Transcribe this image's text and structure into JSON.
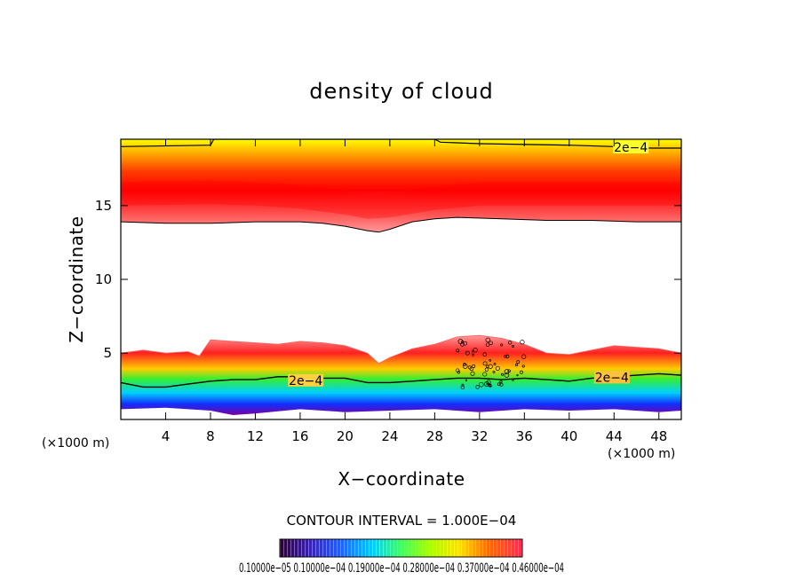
{
  "chart_data": {
    "type": "heatmap",
    "title": "density of cloud",
    "xlabel": "X−coordinate",
    "ylabel": "Z−coordinate",
    "x_unit": "(×1000 m)",
    "xlim": [
      0,
      50
    ],
    "ylim": [
      0.5,
      19.5
    ],
    "x_ticks": [
      4,
      8,
      12,
      16,
      20,
      24,
      28,
      32,
      36,
      40,
      44,
      48
    ],
    "y_ticks": [
      5,
      10,
      15
    ],
    "contour_interval_label": "CONTOUR INTERVAL = 1.000E−04",
    "contour_labels": [
      {
        "text": "2e−4",
        "x": 45.5,
        "z": 18.9
      },
      {
        "text": "2e−4",
        "x": 16.5,
        "z": 3.1
      },
      {
        "text": "2e−4",
        "x": 43.8,
        "z": 3.3
      }
    ],
    "colorbar_labels": "0.10000e−05 0.10000e−04 0.19000e−04 0.28000e−04 0.37000e−04 0.46000e−04",
    "lower_cloud_top_z": [
      [
        0,
        5.0
      ],
      [
        2,
        5.2
      ],
      [
        4,
        5.0
      ],
      [
        6,
        5.1
      ],
      [
        7,
        4.8
      ],
      [
        8,
        5.9
      ],
      [
        10,
        5.8
      ],
      [
        12,
        5.7
      ],
      [
        14,
        5.6
      ],
      [
        16,
        5.8
      ],
      [
        18,
        5.7
      ],
      [
        20,
        5.5
      ],
      [
        22,
        5.0
      ],
      [
        23,
        4.3
      ],
      [
        24,
        4.7
      ],
      [
        26,
        5.3
      ],
      [
        28,
        5.6
      ],
      [
        30,
        6.1
      ],
      [
        32,
        6.2
      ],
      [
        34,
        6.0
      ],
      [
        36,
        5.6
      ],
      [
        38,
        5.0
      ],
      [
        40,
        4.9
      ],
      [
        42,
        5.2
      ],
      [
        44,
        5.5
      ],
      [
        46,
        5.4
      ],
      [
        48,
        5.3
      ],
      [
        50,
        5.0
      ]
    ],
    "lower_contour_z": [
      [
        0,
        3.0
      ],
      [
        2,
        2.7
      ],
      [
        4,
        2.7
      ],
      [
        6,
        2.9
      ],
      [
        8,
        3.1
      ],
      [
        10,
        3.2
      ],
      [
        12,
        3.2
      ],
      [
        14,
        3.4
      ],
      [
        16,
        3.4
      ],
      [
        18,
        3.3
      ],
      [
        20,
        3.3
      ],
      [
        22,
        3.0
      ],
      [
        24,
        3.0
      ],
      [
        26,
        3.1
      ],
      [
        28,
        3.2
      ],
      [
        30,
        3.3
      ],
      [
        32,
        3.3
      ],
      [
        34,
        3.2
      ],
      [
        36,
        3.3
      ],
      [
        38,
        3.2
      ],
      [
        40,
        3.1
      ],
      [
        42,
        3.3
      ],
      [
        44,
        3.4
      ],
      [
        46,
        3.5
      ],
      [
        48,
        3.6
      ],
      [
        50,
        3.5
      ]
    ],
    "lower_cloud_base_z": [
      [
        0,
        1.2
      ],
      [
        4,
        1.3
      ],
      [
        8,
        1.1
      ],
      [
        10,
        0.8
      ],
      [
        12,
        0.9
      ],
      [
        16,
        1.2
      ],
      [
        20,
        1.0
      ],
      [
        24,
        1.1
      ],
      [
        28,
        1.2
      ],
      [
        32,
        1.0
      ],
      [
        36,
        1.2
      ],
      [
        40,
        1.1
      ],
      [
        44,
        1.2
      ],
      [
        48,
        1.0
      ],
      [
        50,
        1.1
      ]
    ],
    "upper_cloud_base_z": [
      [
        0,
        13.9
      ],
      [
        4,
        13.8
      ],
      [
        8,
        13.8
      ],
      [
        12,
        13.9
      ],
      [
        16,
        13.9
      ],
      [
        18,
        13.8
      ],
      [
        20,
        13.6
      ],
      [
        22,
        13.3
      ],
      [
        23,
        13.2
      ],
      [
        24,
        13.4
      ],
      [
        26,
        13.9
      ],
      [
        28,
        14.1
      ],
      [
        30,
        14.2
      ],
      [
        34,
        14.1
      ],
      [
        38,
        14.0
      ],
      [
        42,
        14.0
      ],
      [
        46,
        13.9
      ],
      [
        50,
        13.9
      ]
    ],
    "upper_contour_z": [
      [
        0,
        19.0
      ],
      [
        8,
        19.1
      ],
      [
        8.3,
        19.5
      ],
      [
        28,
        19.5
      ],
      [
        28.5,
        19.3
      ],
      [
        32,
        19.2
      ],
      [
        40,
        19.1
      ],
      [
        44,
        19.0
      ],
      [
        47,
        18.9
      ],
      [
        50,
        18.9
      ]
    ],
    "upper_peak_z": [
      [
        0,
        15.8
      ],
      [
        8,
        15.9
      ],
      [
        12,
        15.8
      ],
      [
        16,
        15.6
      ],
      [
        20,
        15.2
      ],
      [
        22,
        14.9
      ],
      [
        24,
        15.0
      ],
      [
        28,
        15.5
      ],
      [
        32,
        15.8
      ],
      [
        40,
        15.8
      ],
      [
        50,
        15.8
      ]
    ]
  }
}
